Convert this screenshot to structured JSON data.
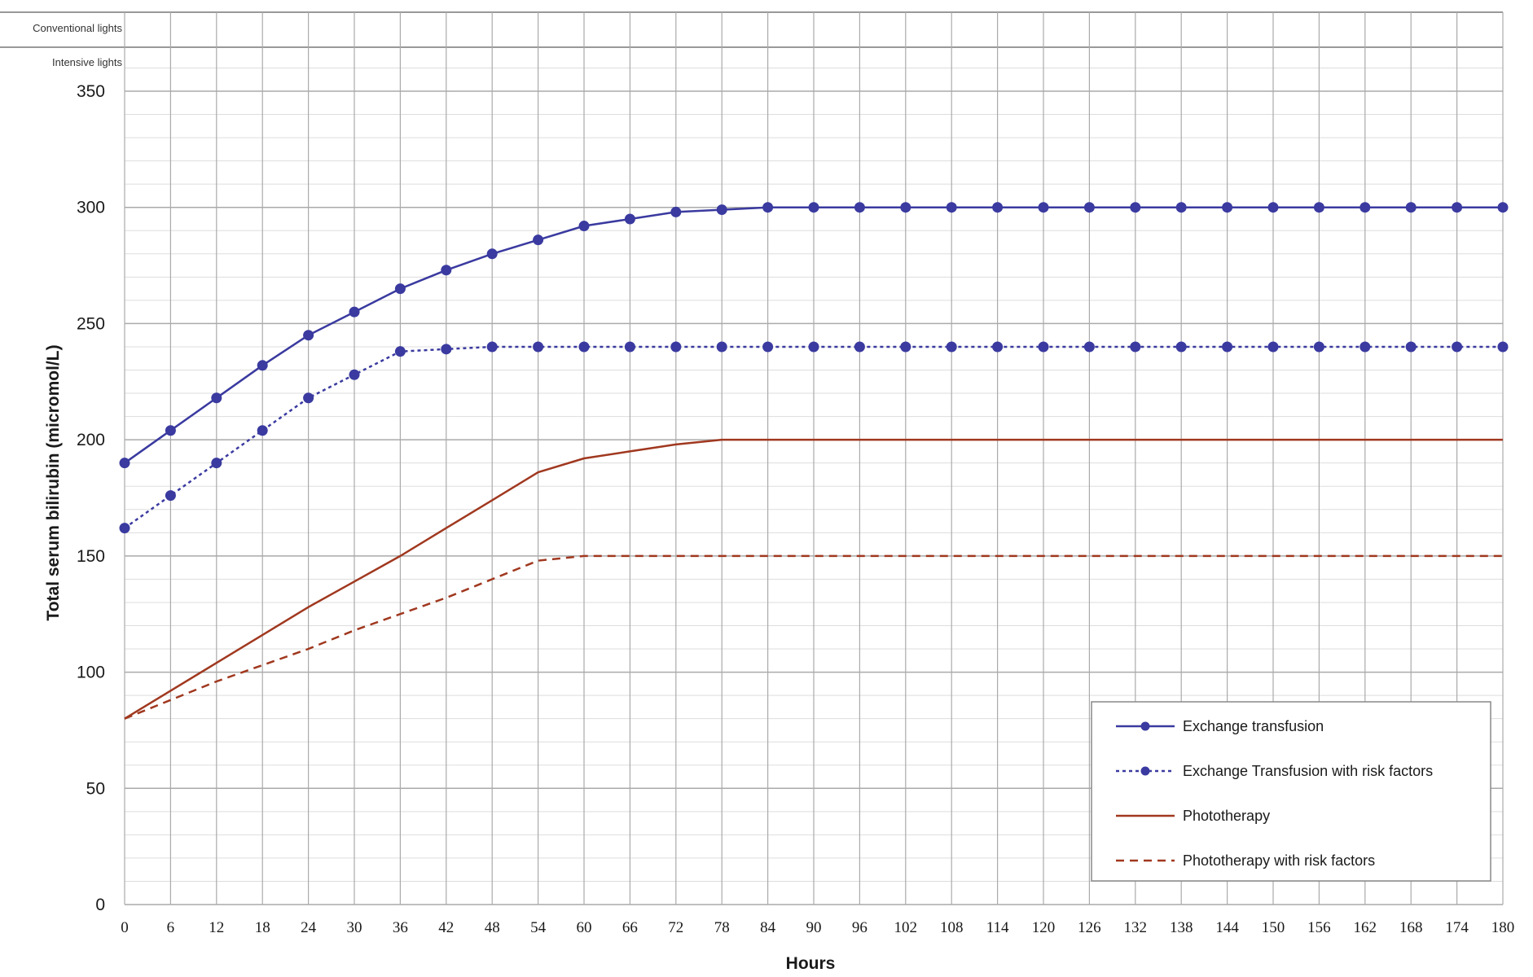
{
  "chart_data": {
    "type": "line",
    "title": "",
    "xlabel": "Hours",
    "ylabel": "Total serum bilirubin (micromol/L)",
    "xlim": [
      0,
      180
    ],
    "ylim": [
      0,
      350
    ],
    "x_ticks": [
      0,
      6,
      12,
      18,
      24,
      30,
      36,
      42,
      48,
      54,
      60,
      66,
      72,
      78,
      84,
      90,
      96,
      102,
      108,
      114,
      120,
      126,
      132,
      138,
      144,
      150,
      156,
      162,
      168,
      174,
      180
    ],
    "y_ticks": [
      0,
      50,
      100,
      150,
      200,
      250,
      300,
      350
    ],
    "grid": true,
    "legend_position": "bottom-right",
    "top_bands": [
      "Conventional lights",
      "Intensive lights"
    ],
    "colors": {
      "exchange": "#3a3aa0",
      "phototherapy": "#a0381f",
      "grid": "#aaaaaa",
      "minor_grid": "#dddddd"
    },
    "series": [
      {
        "name": "Exchange transfusion",
        "style": "solid-markers",
        "x": [
          0,
          6,
          12,
          18,
          24,
          30,
          36,
          42,
          48,
          54,
          60,
          66,
          72,
          78,
          84,
          90,
          96,
          102,
          108,
          114,
          120,
          126,
          132,
          138,
          144,
          150,
          156,
          162,
          168,
          174,
          180
        ],
        "values": [
          190,
          204,
          218,
          232,
          245,
          255,
          265,
          273,
          280,
          286,
          292,
          295,
          298,
          299,
          300,
          300,
          300,
          300,
          300,
          300,
          300,
          300,
          300,
          300,
          300,
          300,
          300,
          300,
          300,
          300,
          300
        ]
      },
      {
        "name": "Exchange Transfusion with risk factors",
        "style": "dotted-markers",
        "x": [
          0,
          6,
          12,
          18,
          24,
          30,
          36,
          42,
          48,
          54,
          60,
          66,
          72,
          78,
          84,
          90,
          96,
          102,
          108,
          114,
          120,
          126,
          132,
          138,
          144,
          150,
          156,
          162,
          168,
          174,
          180
        ],
        "values": [
          162,
          176,
          190,
          204,
          218,
          228,
          238,
          239,
          240,
          240,
          240,
          240,
          240,
          240,
          240,
          240,
          240,
          240,
          240,
          240,
          240,
          240,
          240,
          240,
          240,
          240,
          240,
          240,
          240,
          240,
          240
        ]
      },
      {
        "name": "Phototherapy",
        "style": "solid",
        "x": [
          0,
          6,
          12,
          18,
          24,
          30,
          36,
          42,
          48,
          54,
          60,
          66,
          72,
          78,
          180
        ],
        "values": [
          80,
          92,
          104,
          116,
          128,
          139,
          150,
          162,
          174,
          186,
          192,
          195,
          198,
          200,
          200
        ]
      },
      {
        "name": "Phototherapy with risk factors",
        "style": "dashed",
        "x": [
          0,
          6,
          12,
          18,
          24,
          30,
          36,
          42,
          48,
          54,
          60,
          180
        ],
        "values": [
          80,
          88,
          96,
          103,
          110,
          118,
          125,
          132,
          140,
          148,
          150,
          150
        ]
      }
    ]
  }
}
